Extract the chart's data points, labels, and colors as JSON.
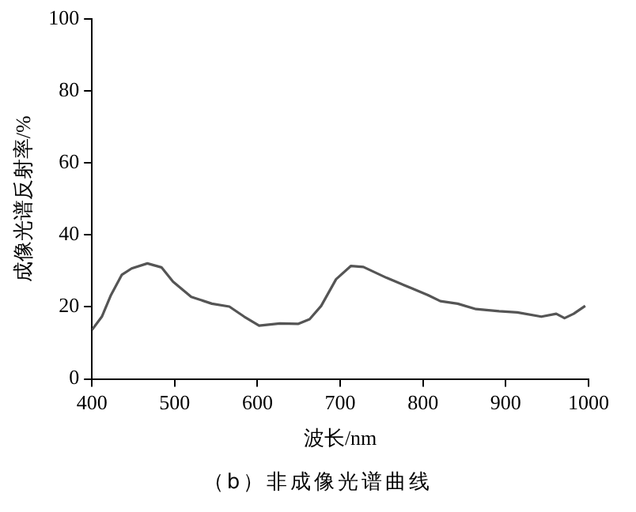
{
  "chart_data": {
    "type": "line",
    "xlabel": "波长/nm",
    "ylabel": "成像光谱反射率/%",
    "x": [
      400,
      412,
      423,
      436,
      448,
      467,
      484,
      498,
      520,
      545,
      566,
      584,
      602,
      627,
      649,
      663,
      677,
      695,
      713,
      728,
      756,
      785,
      806,
      821,
      842,
      864,
      892,
      914,
      943,
      961,
      971,
      982,
      996
    ],
    "series": [
      {
        "color": "#555555",
        "values": [
          13.6,
          17.3,
          23.3,
          28.9,
          30.7,
          32.1,
          31.0,
          27.0,
          22.8,
          20.9,
          20.1,
          17.3,
          14.8,
          15.4,
          15.3,
          16.6,
          20.3,
          27.7,
          31.4,
          31.1,
          28.1,
          25.3,
          23.3,
          21.6,
          20.9,
          19.4,
          18.8,
          18.5,
          17.3,
          18.1,
          16.9,
          18.1,
          20.3
        ]
      }
    ],
    "xlim": [
      400,
      1000
    ],
    "xticks": [
      400,
      500,
      600,
      700,
      800,
      900,
      1000
    ],
    "ylim": [
      0,
      100
    ],
    "yticks": [
      0,
      20,
      40,
      60,
      80,
      100
    ],
    "grid": false,
    "legend": false,
    "marker": "none",
    "line_style": "solid",
    "annotations": [
      "（b）非成像光谱曲线"
    ]
  }
}
